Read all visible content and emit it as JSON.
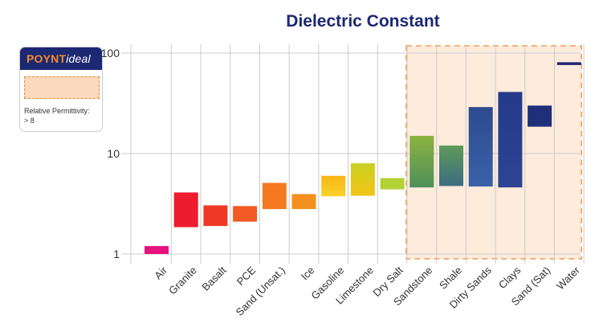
{
  "legend": {
    "brand_prefix": "POYNT",
    "brand_suffix": "ideal",
    "label": "Relative Permittivity:",
    "value": "> 8",
    "header_color": "#1c2872",
    "highlight_fill": "#fcd9bd",
    "highlight_border": "#f08a33"
  },
  "chart_data": {
    "type": "bar",
    "subtype": "floating-range",
    "title": "Dielectric Constant",
    "xlabel": "",
    "ylabel": "",
    "yscale": "log",
    "ylim": [
      0.85,
      130
    ],
    "yticks": [
      {
        "value": 1,
        "label": "1"
      },
      {
        "value": 10,
        "label": "10"
      },
      {
        "value": 100,
        "label": "100"
      }
    ],
    "grid": "vertical category dividers and horizontal lines at 1, 10, 100",
    "highlight_region": {
      "from_category": "Sandstone",
      "to_category": "Water"
    },
    "categories": [
      "Air",
      "Granite",
      "Basalt",
      "PCE",
      "Sand (Unsat.)",
      "Ice",
      "Gasoline",
      "Limestone",
      "Dry Salt",
      "Sandstone",
      "Shale",
      "Dirty Sands",
      "Clays",
      "Sand (Sat)",
      "Water"
    ],
    "ranges": [
      {
        "category": "Air",
        "low": 1.0,
        "high": 1.2,
        "color_top": "#e8127c",
        "color_bottom": "#e8127c"
      },
      {
        "category": "Granite",
        "low": 1.85,
        "high": 4.1,
        "color_top": "#ee1c2e",
        "color_bottom": "#ee1c2e"
      },
      {
        "category": "Basalt",
        "low": 1.9,
        "high": 3.05,
        "color_top": "#ee3a24",
        "color_bottom": "#ee3a24"
      },
      {
        "category": "PCE",
        "low": 2.1,
        "high": 3.0,
        "color_top": "#f15a22",
        "color_bottom": "#f15a22"
      },
      {
        "category": "Sand (Unsat.)",
        "low": 2.8,
        "high": 5.1,
        "color_top": "#f47920",
        "color_bottom": "#f47920"
      },
      {
        "category": "Ice",
        "low": 2.8,
        "high": 3.95,
        "color_top": "#f5901f",
        "color_bottom": "#f5901f"
      },
      {
        "category": "Gasoline",
        "low": 3.75,
        "high": 6.0,
        "color_top": "#f7b516",
        "color_bottom": "#fcd22b"
      },
      {
        "category": "Limestone",
        "low": 3.8,
        "high": 8.0,
        "color_top": "#cbd021",
        "color_bottom": "#f3c417"
      },
      {
        "category": "Dry Salt",
        "low": 4.4,
        "high": 5.7,
        "color_top": "#b2d235",
        "color_bottom": "#b2d235"
      },
      {
        "category": "Sandstone",
        "low": 4.6,
        "high": 15.0,
        "color_top": "#8ab33f",
        "color_bottom": "#4f8f5c"
      },
      {
        "category": "Shale",
        "low": 4.75,
        "high": 12.0,
        "color_top": "#5e9a5a",
        "color_bottom": "#3d6b82"
      },
      {
        "category": "Dirty Sands",
        "low": 4.7,
        "high": 29.0,
        "color_top": "#2d4a8f",
        "color_bottom": "#3a62a8"
      },
      {
        "category": "Clays",
        "low": 4.6,
        "high": 41.0,
        "color_top": "#243a8a",
        "color_bottom": "#2c4494"
      },
      {
        "category": "Sand (Sat)",
        "low": 18.5,
        "high": 30.0,
        "color_top": "#1f2f7a",
        "color_bottom": "#1f2f7a"
      },
      {
        "category": "Water",
        "low": 76.0,
        "high": 81.0,
        "color_top": "#1c2872",
        "color_bottom": "#1c2872"
      }
    ],
    "colors": {
      "title": "#1c2872",
      "grid": "#cccccc",
      "axis_text": "#333333",
      "highlight_fill": "#fdebdc",
      "highlight_border": "#f08a33"
    }
  }
}
